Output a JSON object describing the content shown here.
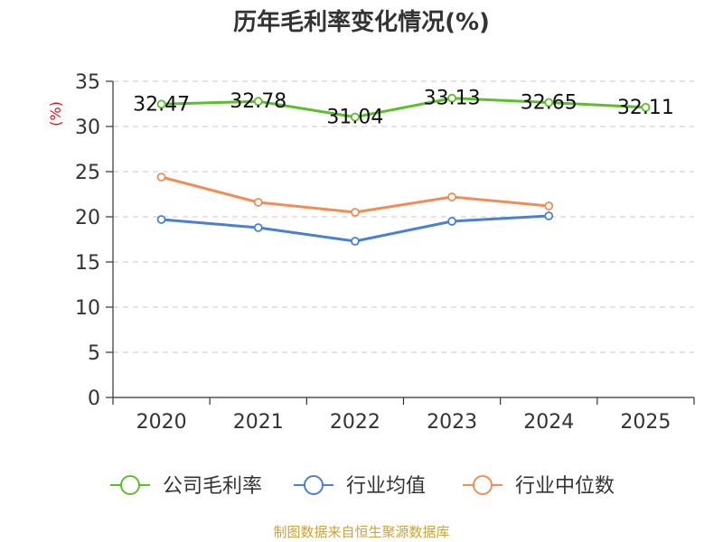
{
  "chart_data": {
    "type": "line",
    "title": "历年毛利率变化情况(%)",
    "ylabel": "(%)",
    "xlabel": "",
    "ylim": [
      0,
      35
    ],
    "yticks": [
      0,
      5,
      10,
      15,
      20,
      25,
      30,
      35
    ],
    "categories": [
      "2020",
      "2021",
      "2022",
      "2023",
      "2024",
      "2025"
    ],
    "grid": true,
    "legend_position": "bottom",
    "series": [
      {
        "name": "公司毛利率",
        "color": "#5cbf2a",
        "values": [
          32.47,
          32.78,
          31.04,
          33.13,
          32.65,
          32.11
        ],
        "labels": [
          "32.47",
          "32.78",
          "31.04",
          "33.13",
          "32.65",
          "32.11"
        ]
      },
      {
        "name": "行业均值",
        "color": "#4a7fd6",
        "values": [
          19.7,
          18.8,
          17.3,
          19.5,
          20.1,
          null
        ]
      },
      {
        "name": "行业中位数",
        "color": "#f28c55",
        "values": [
          24.4,
          21.6,
          20.5,
          22.2,
          21.2,
          null
        ]
      }
    ]
  },
  "footer": "制图数据来自恒生聚源数据库"
}
